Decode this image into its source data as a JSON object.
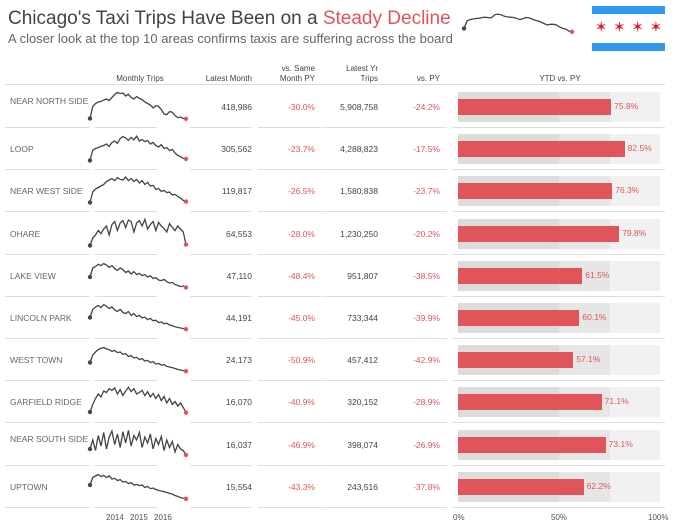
{
  "header": {
    "title_prefix": "Chicago's Taxi Trips Have Been on a ",
    "title_highlight": "Steady Decline",
    "subtitle": "A closer look at the top 10 areas confirms taxis are suffering across the board"
  },
  "flag": {
    "stripe_color": "#3399ee",
    "star_color": "#e0202a",
    "stars": 4
  },
  "colors": {
    "accent": "#e0555a",
    "line": "#444444"
  },
  "columns": {
    "trend": "Monthly Trips",
    "latest_month": "Latest Month",
    "vs_same_month": "vs. Same Month PY",
    "latest_yr": "Latest Yr Trips",
    "vs_py": "vs. PY",
    "ytd": "YTD vs. PY"
  },
  "chart_data": {
    "type": "table",
    "overall_trend": [
      40,
      62,
      66,
      68,
      69,
      70,
      72,
      73,
      71,
      72,
      80,
      82,
      80,
      76,
      74,
      73,
      72,
      70,
      66,
      68,
      72,
      71,
      68,
      64,
      62,
      58,
      54,
      50,
      52,
      52,
      50,
      44,
      40,
      38,
      32,
      30
    ],
    "x_ticks": [
      "2014",
      "2015",
      "2016"
    ],
    "ytd_axis_ticks": [
      "0%",
      "50%",
      "100%"
    ],
    "ytd_bands": [
      50,
      75,
      100
    ],
    "rows": [
      {
        "area": "NEAR NORTH SIDE",
        "latest_month": "418,986",
        "vs_same_month": "-30.0%",
        "latest_yr": "5,908,758",
        "vs_py": "-24.2%",
        "ytd": 75.8,
        "ytd_label": "75.8%",
        "trend": [
          5,
          45,
          55,
          60,
          62,
          66,
          70,
          65,
          75,
          85,
          92,
          88,
          90,
          80,
          86,
          75,
          70,
          78,
          72,
          68,
          60,
          55,
          50,
          40,
          48,
          45,
          35,
          20,
          18,
          28,
          26,
          15,
          8,
          10,
          5,
          4
        ]
      },
      {
        "area": "LOOP",
        "latest_month": "305,562",
        "vs_same_month": "-23.7%",
        "latest_yr": "4,288,823",
        "vs_py": "-17.5%",
        "ytd": 82.5,
        "ytd_label": "82.5%",
        "trend": [
          5,
          40,
          45,
          48,
          52,
          55,
          60,
          52,
          65,
          70,
          62,
          78,
          85,
          80,
          72,
          82,
          74,
          86,
          70,
          75,
          68,
          72,
          60,
          65,
          55,
          50,
          58,
          45,
          48,
          38,
          42,
          30,
          22,
          18,
          12,
          10
        ]
      },
      {
        "area": "NEAR WEST SIDE",
        "latest_month": "119,817",
        "vs_same_month": "-26.5%",
        "latest_yr": "1,580,838",
        "vs_py": "-23.7%",
        "ytd": 76.3,
        "ytd_label": "76.3%",
        "trend": [
          5,
          40,
          50,
          55,
          60,
          65,
          75,
          80,
          85,
          78,
          88,
          82,
          80,
          90,
          78,
          85,
          75,
          82,
          70,
          78,
          65,
          72,
          60,
          62,
          48,
          52,
          42,
          45,
          38,
          40,
          30,
          32,
          25,
          20,
          12,
          8
        ]
      },
      {
        "area": "OHARE",
        "latest_month": "64,553",
        "vs_same_month": "-28.0%",
        "latest_yr": "1,230,250",
        "vs_py": "-20.2%",
        "ytd": 79.8,
        "ytd_label": "79.8%",
        "trend": [
          5,
          30,
          40,
          55,
          45,
          60,
          70,
          40,
          75,
          85,
          55,
          80,
          88,
          65,
          90,
          85,
          50,
          80,
          88,
          70,
          92,
          60,
          75,
          85,
          55,
          82,
          70,
          62,
          50,
          78,
          65,
          55,
          70,
          60,
          50,
          8
        ]
      },
      {
        "area": "LAKE VIEW",
        "latest_month": "47,110",
        "vs_same_month": "-48.4%",
        "latest_yr": "951,807",
        "vs_py": "-38.5%",
        "ytd": 61.5,
        "ytd_label": "61.5%",
        "trend": [
          40,
          70,
          75,
          82,
          78,
          85,
          80,
          72,
          78,
          68,
          62,
          70,
          65,
          55,
          60,
          50,
          58,
          48,
          52,
          45,
          48,
          40,
          44,
          35,
          38,
          30,
          28,
          32,
          24,
          20,
          22,
          15,
          12,
          8,
          10,
          5
        ]
      },
      {
        "area": "LINCOLN PARK",
        "latest_month": "44,191",
        "vs_same_month": "-45.0%",
        "latest_yr": "733,344",
        "vs_py": "-39.9%",
        "ytd": 60.1,
        "ytd_label": "60.1%",
        "trend": [
          45,
          72,
          80,
          85,
          78,
          88,
          82,
          75,
          80,
          70,
          65,
          72,
          62,
          58,
          65,
          52,
          58,
          48,
          52,
          44,
          46,
          38,
          42,
          34,
          36,
          28,
          30,
          24,
          26,
          20,
          18,
          14,
          12,
          10,
          8,
          6
        ]
      },
      {
        "area": "WEST TOWN",
        "latest_month": "24,173",
        "vs_same_month": "-50.9%",
        "latest_yr": "457,412",
        "vs_py": "-42.9%",
        "ytd": 57.1,
        "ytd_label": "57.1%",
        "trend": [
          35,
          60,
          70,
          78,
          82,
          85,
          80,
          78,
          72,
          75,
          68,
          70,
          62,
          65,
          55,
          58,
          50,
          52,
          45,
          48,
          40,
          42,
          35,
          38,
          30,
          32,
          26,
          28,
          22,
          20,
          18,
          15,
          12,
          10,
          8,
          6
        ]
      },
      {
        "area": "GARFIELD RIDGE",
        "latest_month": "16,070",
        "vs_same_month": "-40.9%",
        "latest_yr": "320,152",
        "vs_py": "-28.9%",
        "ytd": 71.1,
        "ytd_label": "71.1%",
        "trend": [
          10,
          35,
          55,
          70,
          60,
          80,
          75,
          88,
          82,
          90,
          70,
          85,
          65,
          80,
          92,
          78,
          88,
          70,
          75,
          82,
          65,
          78,
          60,
          72,
          55,
          68,
          48,
          62,
          40,
          55,
          35,
          45,
          30,
          40,
          25,
          8
        ]
      },
      {
        "area": "NEAR SOUTH SIDE",
        "latest_month": "16,037",
        "vs_same_month": "-46.9%",
        "latest_yr": "398,074",
        "vs_py": "-26.9%",
        "ytd": 73.1,
        "ytd_label": "73.1%",
        "trend": [
          30,
          60,
          25,
          75,
          40,
          85,
          30,
          70,
          90,
          45,
          80,
          35,
          88,
          50,
          92,
          40,
          75,
          60,
          85,
          35,
          70,
          50,
          80,
          30,
          65,
          45,
          72,
          25,
          60,
          35,
          55,
          20,
          45,
          30,
          25,
          10
        ]
      },
      {
        "area": "UPTOWN",
        "latest_month": "15,554",
        "vs_same_month": "-43.3%",
        "latest_yr": "243,516",
        "vs_py": "-37.8%",
        "ytd": 62.2,
        "ytd_label": "62.2%",
        "trend": [
          50,
          75,
          80,
          85,
          78,
          82,
          75,
          80,
          70,
          72,
          65,
          68,
          60,
          62,
          55,
          58,
          50,
          52,
          48,
          50,
          42,
          45,
          38,
          40,
          35,
          32,
          30,
          28,
          25,
          22,
          20,
          15,
          12,
          8,
          6,
          4
        ]
      }
    ]
  }
}
